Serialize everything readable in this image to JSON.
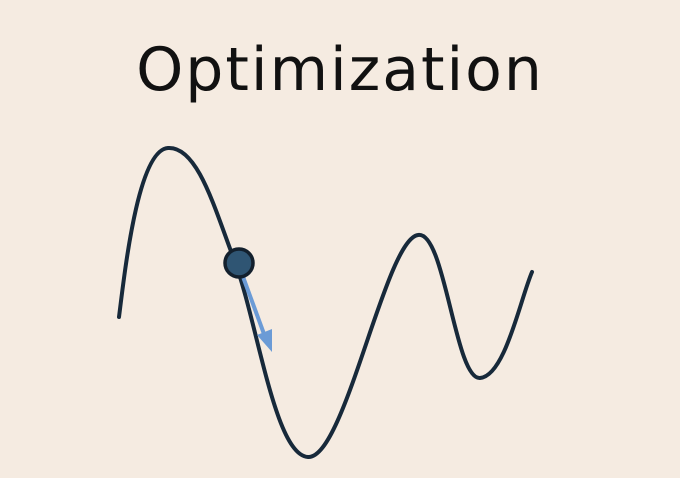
{
  "title": "Optimization",
  "colors": {
    "background": "#f5ebe1",
    "curve": "#17293a",
    "ball_fill": "#2f5573",
    "ball_stroke": "#13202d",
    "arrow": "#6b9bd6",
    "title": "#111111"
  },
  "elements": {
    "curve": "loss-landscape-curve",
    "ball": "optimizer-ball",
    "arrow": "gradient-descent-arrow"
  }
}
